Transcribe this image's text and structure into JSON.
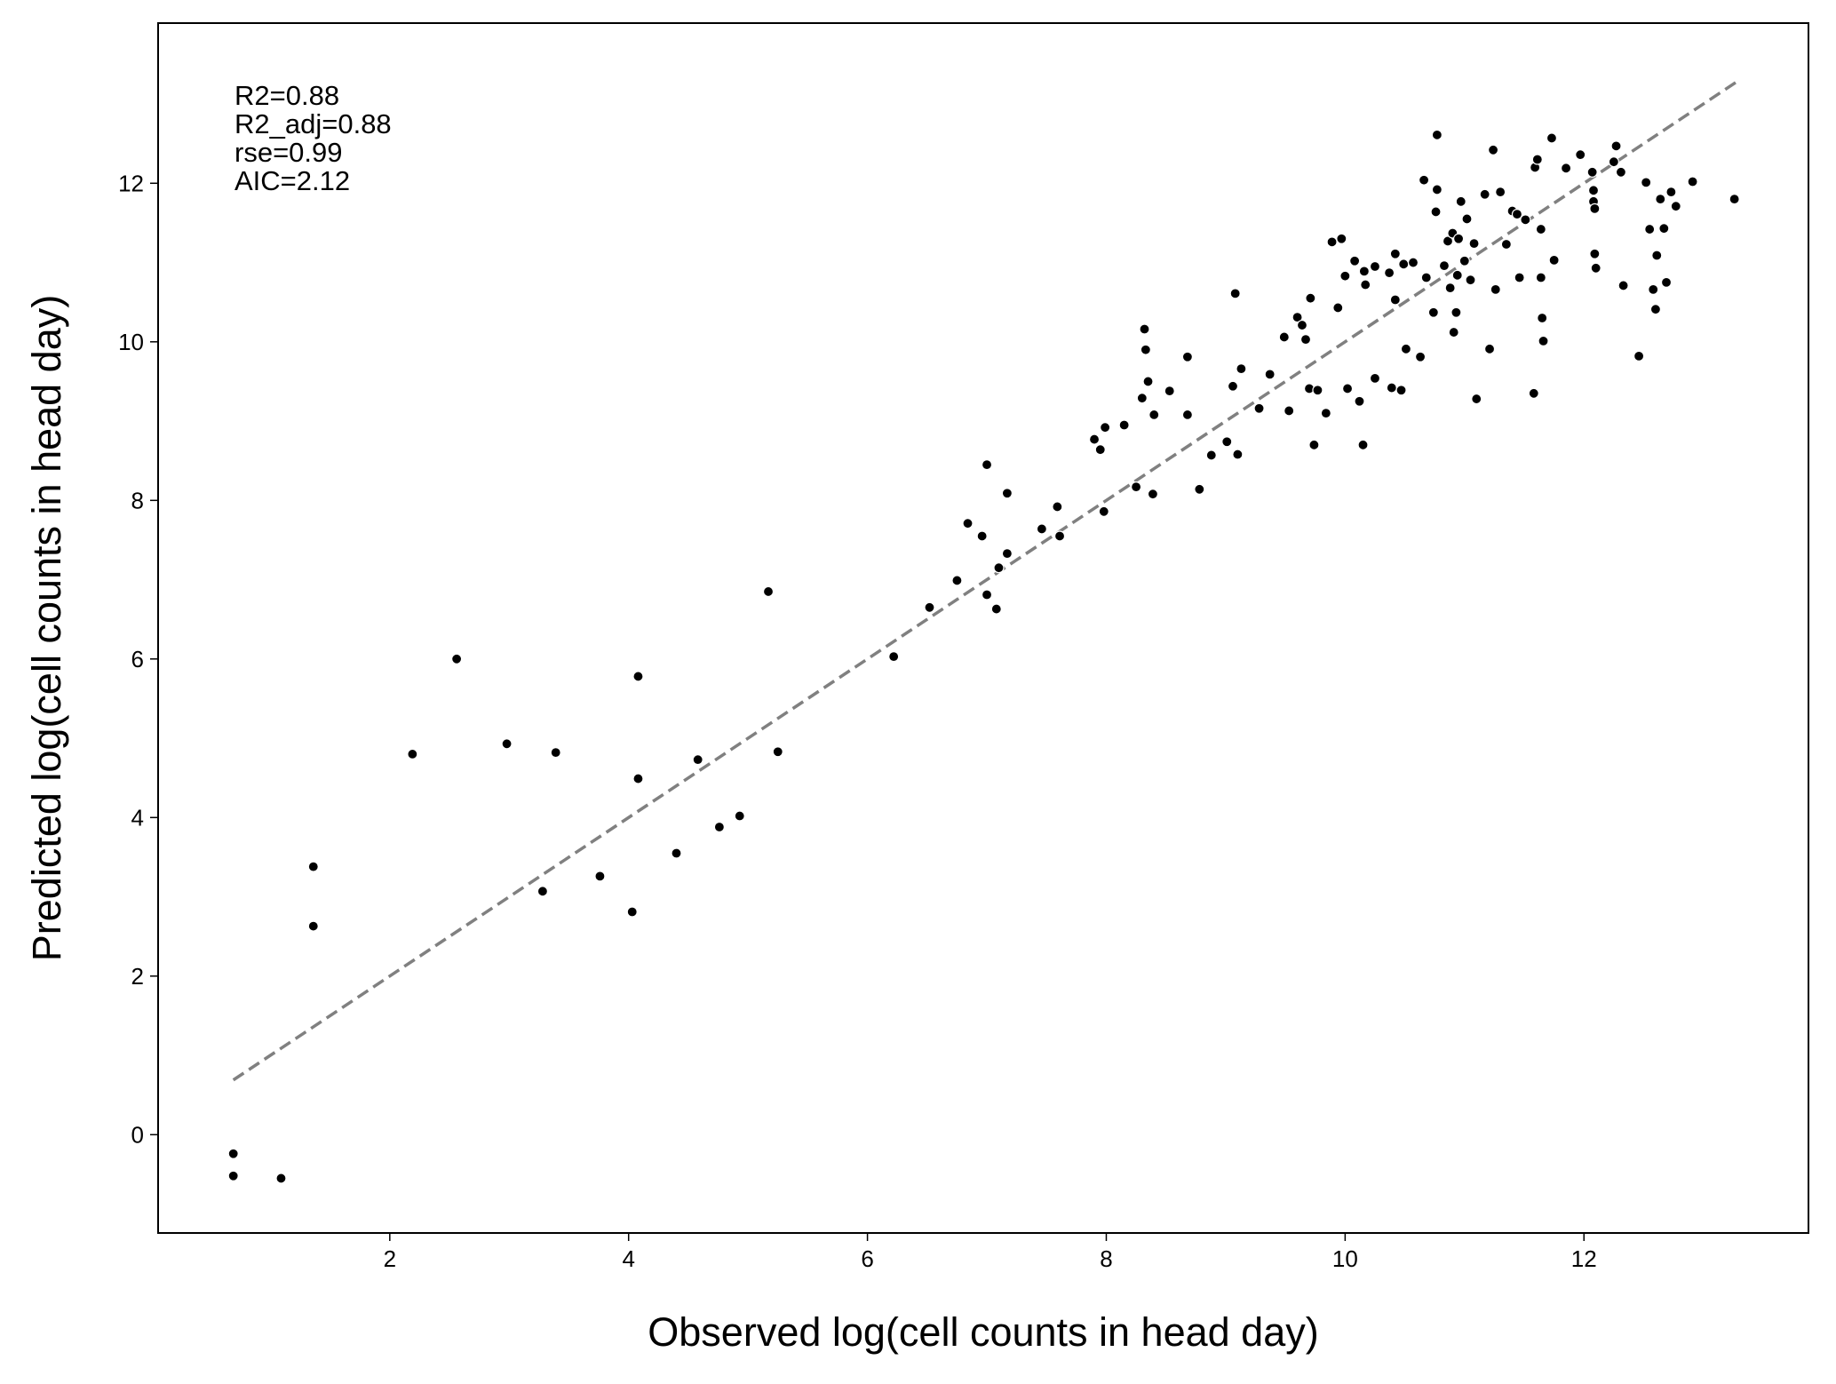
{
  "chart_data": {
    "type": "scatter",
    "xlabel": "Observed log(cell counts in head day)",
    "ylabel": "Predicted log(cell counts in head day)",
    "annotations": [
      "R2=0.88",
      "R2_adj=0.88",
      "rse=0.99",
      "AIC=2.12"
    ],
    "xlim": [
      0.06,
      13.88
    ],
    "ylim": [
      -1.24,
      14.02
    ],
    "xticks": [
      2,
      4,
      6,
      8,
      10,
      12
    ],
    "yticks": [
      0,
      2,
      4,
      6,
      8,
      10,
      12
    ],
    "reference_line": {
      "color": "#808080",
      "x": [
        0.69,
        13.27
      ],
      "y": [
        0.69,
        13.27
      ]
    },
    "series": [
      {
        "color": "#000000",
        "x": [
          0.69,
          0.69,
          1.09,
          1.36,
          1.36,
          2.19,
          2.56,
          2.98,
          3.39,
          3.28,
          3.76,
          4.03,
          4.08,
          4.08,
          4.4,
          4.58,
          4.76,
          4.93,
          5.17,
          5.25,
          6.22,
          6.52,
          6.75,
          6.84,
          6.96,
          7.0,
          7.0,
          7.08,
          7.1,
          7.17,
          7.17,
          7.46,
          7.59,
          7.61,
          7.9,
          7.95,
          7.99,
          7.98,
          8.15,
          8.25,
          8.3,
          8.32,
          8.33,
          8.35,
          8.39,
          8.4,
          8.53,
          8.68,
          8.68,
          8.78,
          8.88,
          9.01,
          9.06,
          9.08,
          9.1,
          9.13,
          9.28,
          9.37,
          9.49,
          9.53,
          9.6,
          9.64,
          9.67,
          9.7,
          9.71,
          9.74,
          9.77,
          9.84,
          9.89,
          9.94,
          9.97,
          10.0,
          10.02,
          10.08,
          10.12,
          10.15,
          10.16,
          10.17,
          10.25,
          10.25,
          10.37,
          10.39,
          10.42,
          10.42,
          10.47,
          10.49,
          10.51,
          10.57,
          10.63,
          10.66,
          10.68,
          10.74,
          10.76,
          10.77,
          10.77,
          10.83,
          10.86,
          10.88,
          10.9,
          10.91,
          10.93,
          10.94,
          10.95,
          10.97,
          11.0,
          11.02,
          11.05,
          11.08,
          11.1,
          11.17,
          11.21,
          11.24,
          11.26,
          11.3,
          11.35,
          11.4,
          11.44,
          11.46,
          11.51,
          11.58,
          11.59,
          11.61,
          11.64,
          11.64,
          11.65,
          11.66,
          11.73,
          11.75,
          11.85,
          11.97,
          12.07,
          12.08,
          12.08,
          12.09,
          12.09,
          12.1,
          12.25,
          12.27,
          12.31,
          12.33,
          12.46,
          12.52,
          12.55,
          12.58,
          12.6,
          12.61,
          12.64,
          12.67,
          12.69,
          12.73,
          12.77,
          12.91,
          13.26
        ],
        "y": [
          -0.24,
          -0.52,
          -0.55,
          3.38,
          2.63,
          4.8,
          6.0,
          4.93,
          4.82,
          3.07,
          3.26,
          2.81,
          5.78,
          4.49,
          3.55,
          4.73,
          3.88,
          4.02,
          6.85,
          4.83,
          6.03,
          6.65,
          6.99,
          7.71,
          7.55,
          8.45,
          6.81,
          6.63,
          7.15,
          7.33,
          8.09,
          7.64,
          7.92,
          7.55,
          8.77,
          8.64,
          8.92,
          7.86,
          8.95,
          8.17,
          9.29,
          10.16,
          9.9,
          9.5,
          8.08,
          9.08,
          9.38,
          9.81,
          9.08,
          8.14,
          8.57,
          8.74,
          9.44,
          10.61,
          8.58,
          9.66,
          9.16,
          9.59,
          10.06,
          9.13,
          10.31,
          10.21,
          10.03,
          9.41,
          10.55,
          8.7,
          9.39,
          9.1,
          11.26,
          10.43,
          11.3,
          10.83,
          9.41,
          11.02,
          9.25,
          8.7,
          10.89,
          10.72,
          10.95,
          9.54,
          10.87,
          9.42,
          10.53,
          11.11,
          9.39,
          10.98,
          9.91,
          11.0,
          9.81,
          12.04,
          10.81,
          10.37,
          11.64,
          12.61,
          11.92,
          10.96,
          11.27,
          10.68,
          11.37,
          10.12,
          10.37,
          10.84,
          11.3,
          11.77,
          11.02,
          11.55,
          10.78,
          11.24,
          9.28,
          11.86,
          9.91,
          12.42,
          10.66,
          11.89,
          11.23,
          11.65,
          11.61,
          10.81,
          11.54,
          9.35,
          12.2,
          12.3,
          11.42,
          10.81,
          10.3,
          10.01,
          12.57,
          11.03,
          12.19,
          12.36,
          12.14,
          11.91,
          11.77,
          11.68,
          11.11,
          10.93,
          12.27,
          12.47,
          12.14,
          10.71,
          9.82,
          12.01,
          11.42,
          10.66,
          10.41,
          11.09,
          11.8,
          11.43,
          10.75,
          11.89,
          11.71,
          12.02,
          11.8
        ]
      }
    ]
  }
}
